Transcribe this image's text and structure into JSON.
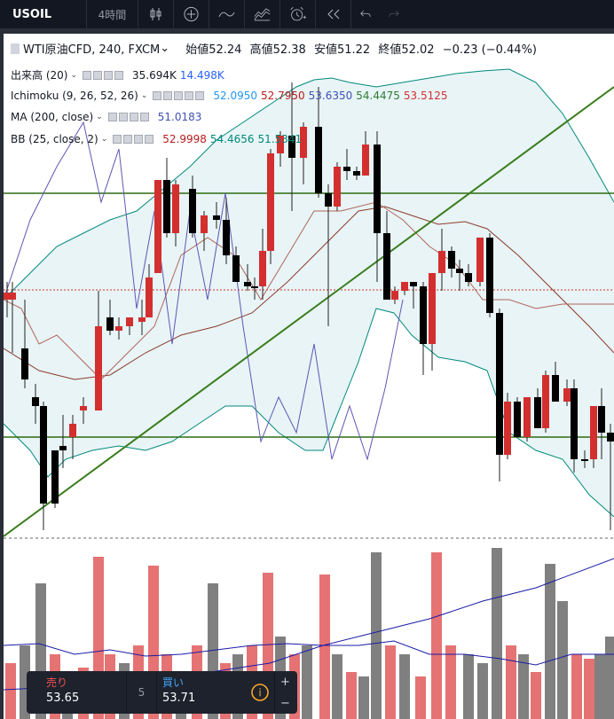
{
  "toolbar": {
    "symbol": "USOIL",
    "interval": "4時間"
  },
  "main": {
    "title": "WTI原油CFD, 240, FXCM",
    "ohlc": {
      "open_label": "始値",
      "open": "52.24",
      "high_label": "高値",
      "high": "52.38",
      "low_label": "安値",
      "low": "51.22",
      "close_label": "終値",
      "close": "52.02",
      "change": "−0.23 (−0.44%)"
    }
  },
  "indicators": {
    "volume": {
      "name": "出来高 (20)",
      "v1": "35.694K",
      "v2": "14.498K",
      "c1": "#131722",
      "c2": "#2962ff"
    },
    "ichimoku": {
      "name": "Ichimoku (9, 26, 52, 26)",
      "v1": "52.0950",
      "v2": "52.7950",
      "v3": "53.6350",
      "v4": "54.4475",
      "v5": "53.5125",
      "c1": "#2196f3",
      "c2": "#b71c1c",
      "c3": "#3f51b5",
      "c4": "#2e7d32",
      "c5": "#d32f2f"
    },
    "ma": {
      "name": "MA (200, close)",
      "v1": "51.0183",
      "c1": "#3f51b5"
    },
    "bb": {
      "name": "BB (25, close, 2)",
      "v1": "52.9998",
      "v2": "54.4656",
      "v3": "51.5341",
      "c1": "#b71c1c",
      "c2": "#00897b",
      "c3": "#00897b"
    }
  },
  "trade_panel": {
    "sell_label": "売り",
    "sell_price": "53.65",
    "quantity": "5",
    "buy_label": "買い",
    "buy_price": "53.71"
  },
  "colors": {
    "up": "#d32f2f",
    "down": "#000000",
    "vol_up": "#e57373",
    "vol_down": "#808080",
    "cloud": "#e8f4f6",
    "horizontal_line": "#2e6b12",
    "trendline": "#3a7d1c"
  },
  "icons": [
    "candles-icon",
    "add-indicator-icon",
    "line-tool-icon",
    "templates-icon",
    "alert-icon",
    "replay-icon",
    "undo-icon",
    "redo-icon"
  ]
}
